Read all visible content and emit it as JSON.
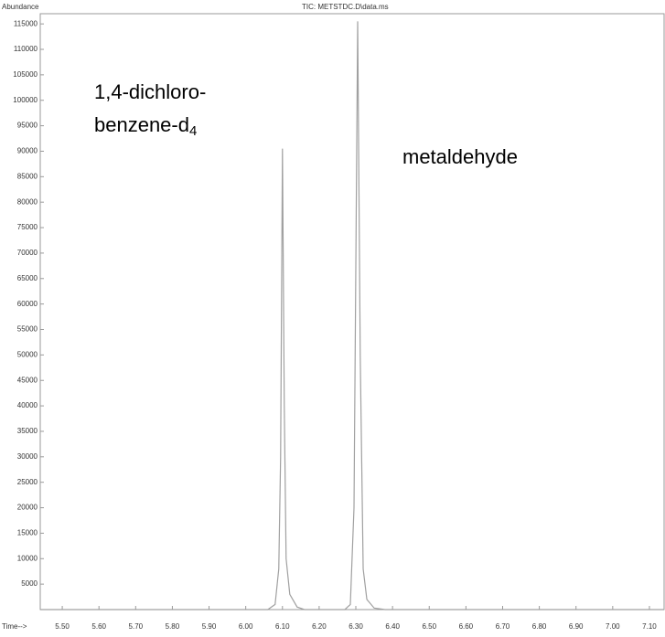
{
  "chart_data": {
    "type": "line",
    "title": "TIC: METSTDC.D\\data.ms",
    "y_label": "Abundance",
    "x_label": "Time-->",
    "annotations": [
      {
        "lines": [
          "1,4-dichloro-",
          "benzene-d"
        ],
        "subscript": "4"
      },
      {
        "lines": [
          "metaldehyde"
        ]
      }
    ],
    "x": [
      5.44,
      6.06,
      6.08,
      6.09,
      6.095,
      6.1,
      6.105,
      6.11,
      6.12,
      6.14,
      6.16,
      6.27,
      6.285,
      6.295,
      6.305,
      6.312,
      6.32,
      6.33,
      6.35,
      6.38,
      7.14
    ],
    "series": [
      {
        "color": "#a0a0a0",
        "values": [
          0,
          0,
          1000,
          8000,
          30000,
          90500,
          40000,
          10000,
          3000,
          500,
          0,
          0,
          1000,
          20000,
          115500,
          50000,
          8000,
          2000,
          300,
          0,
          0
        ]
      }
    ],
    "xlim": [
      5.44,
      7.14
    ],
    "ylim": [
      0,
      117000
    ],
    "xticks": [
      {
        "value": 5.5,
        "label": "5.50"
      },
      {
        "value": 5.6,
        "label": "5.60"
      },
      {
        "value": 5.7,
        "label": "5.70"
      },
      {
        "value": 5.8,
        "label": "5.80"
      },
      {
        "value": 5.9,
        "label": "5.90"
      },
      {
        "value": 6.0,
        "label": "6.00"
      },
      {
        "value": 6.1,
        "label": "6.10"
      },
      {
        "value": 6.2,
        "label": "6.20"
      },
      {
        "value": 6.3,
        "label": "6.30"
      },
      {
        "value": 6.4,
        "label": "6.40"
      },
      {
        "value": 6.5,
        "label": "6.50"
      },
      {
        "value": 6.6,
        "label": "6.60"
      },
      {
        "value": 6.7,
        "label": "6.70"
      },
      {
        "value": 6.8,
        "label": "6.80"
      },
      {
        "value": 6.9,
        "label": "6.90"
      },
      {
        "value": 7.0,
        "label": "7.00"
      },
      {
        "value": 7.1,
        "label": "7.10"
      }
    ],
    "yticks": [
      5000,
      10000,
      15000,
      20000,
      25000,
      30000,
      35000,
      40000,
      45000,
      50000,
      55000,
      60000,
      65000,
      70000,
      75000,
      80000,
      85000,
      90000,
      95000,
      100000,
      105000,
      110000,
      115000
    ]
  }
}
